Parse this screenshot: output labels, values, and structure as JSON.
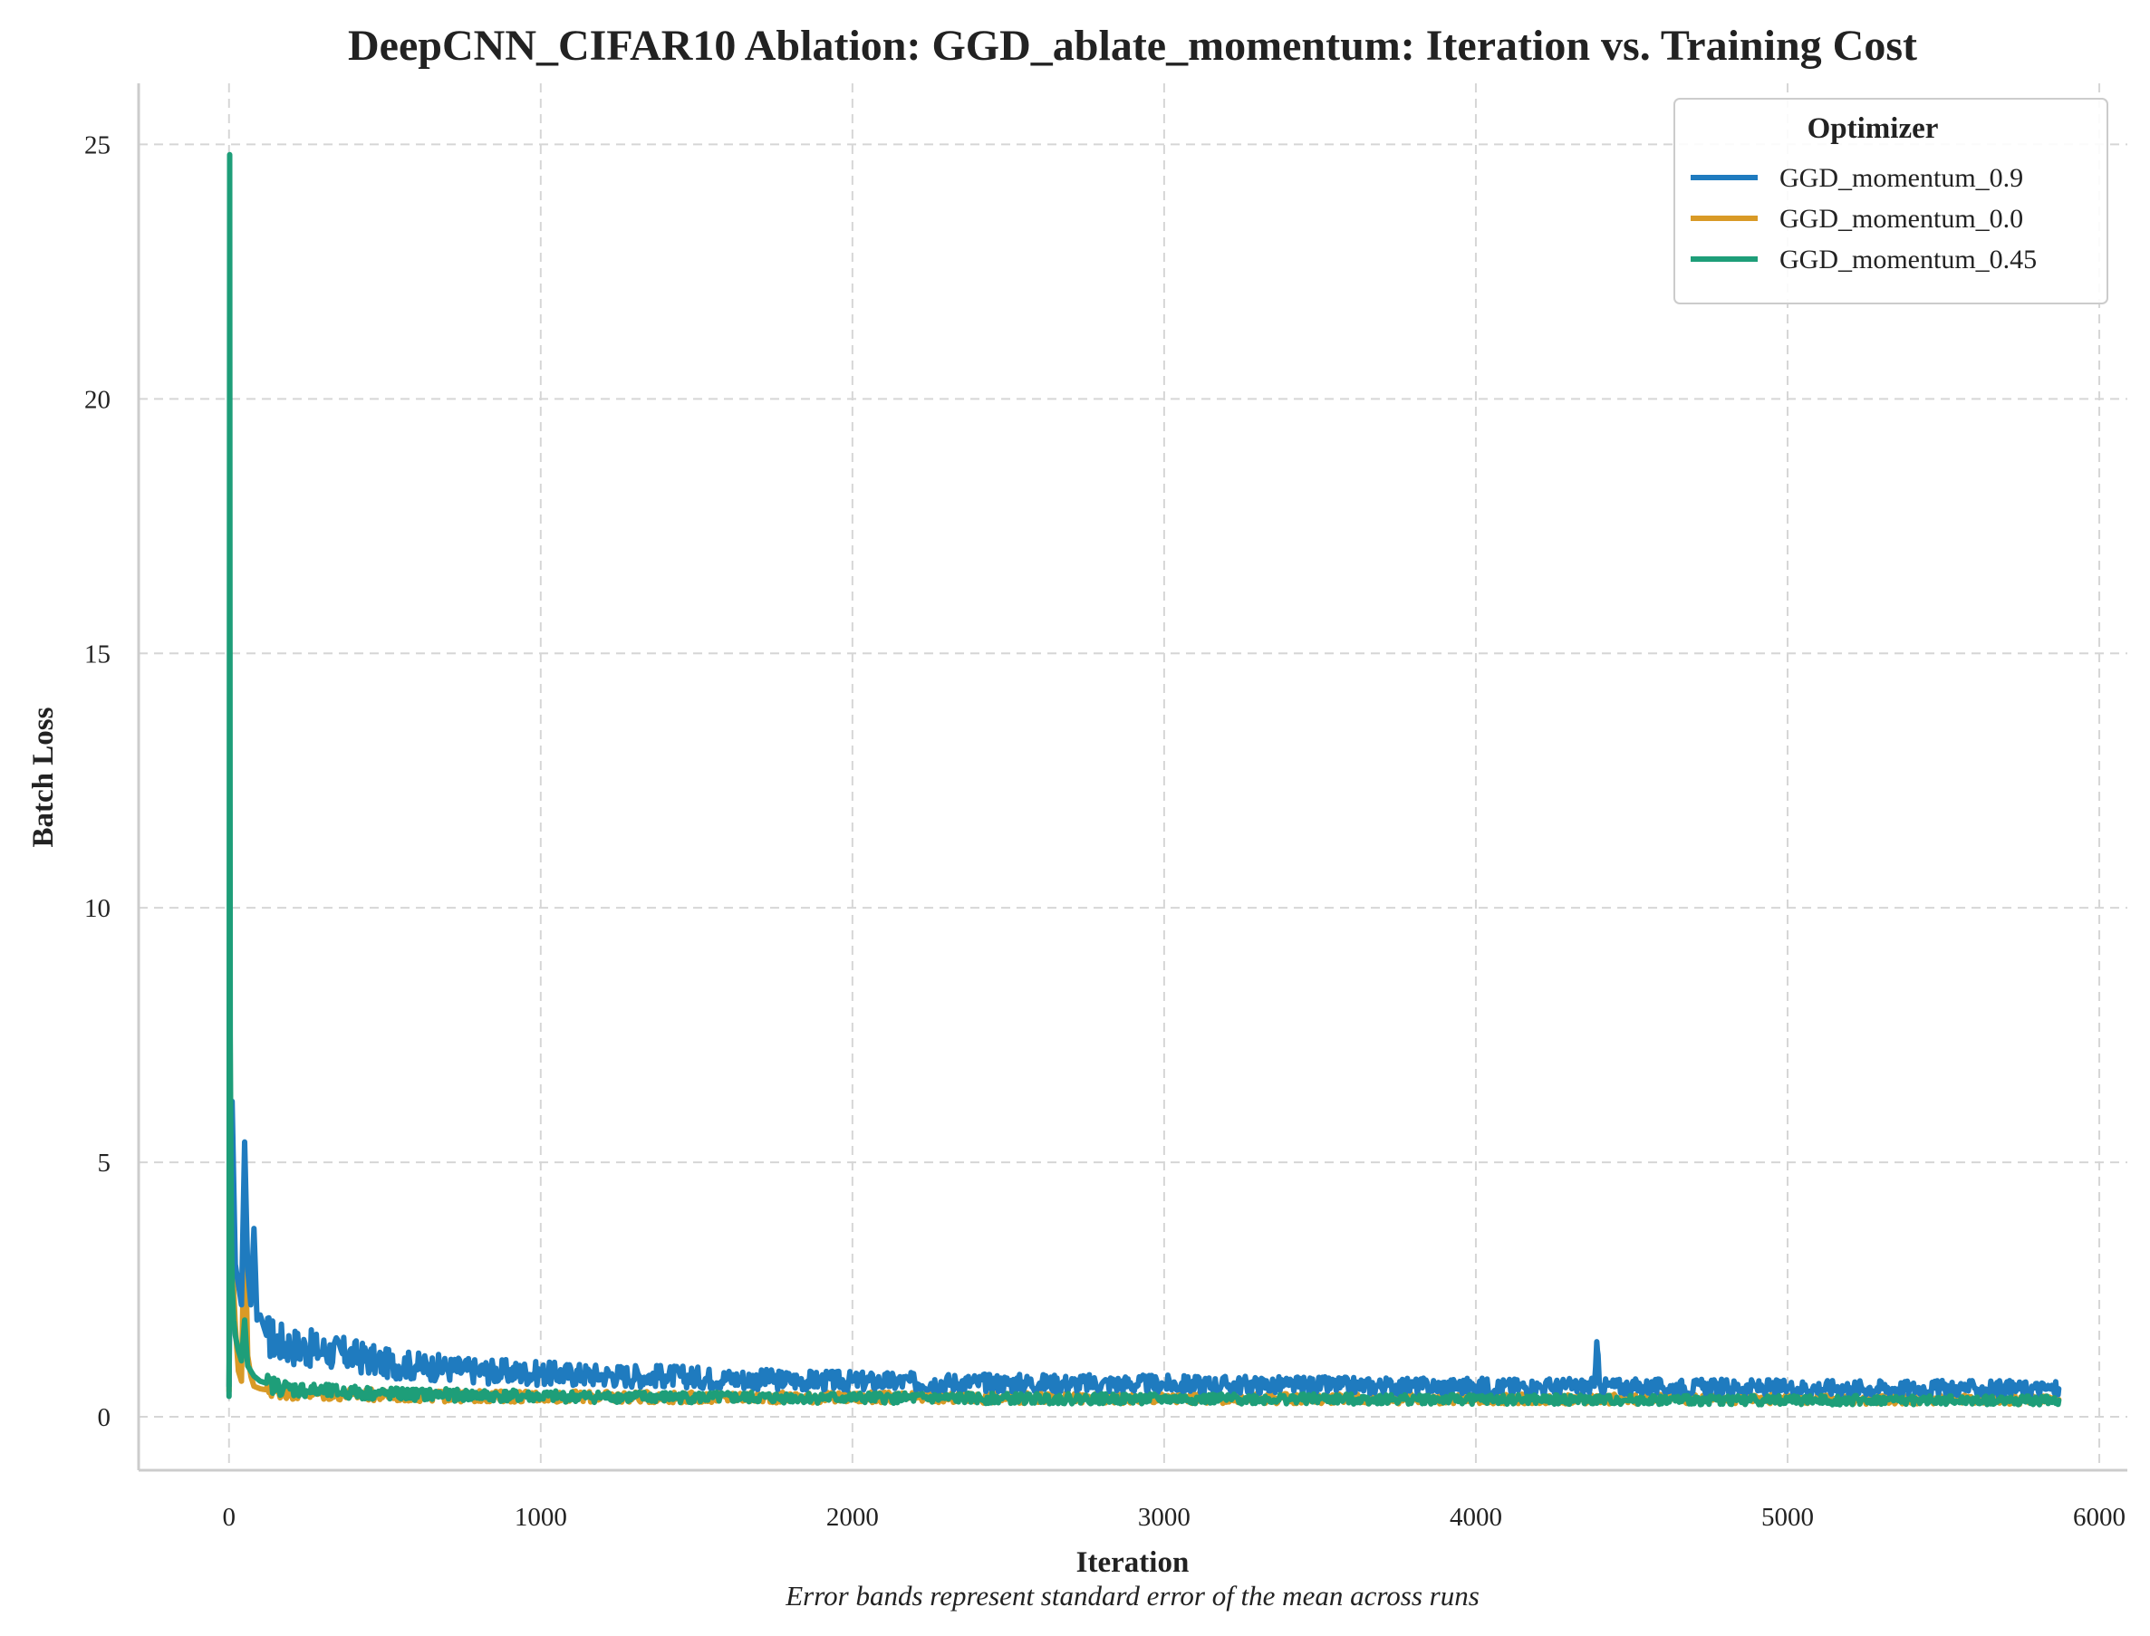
{
  "chart_data": {
    "type": "line",
    "title": "DeepCNN_CIFAR10 Ablation: GGD_ablate_momentum: Iteration vs. Training Cost",
    "xlabel": "Iteration",
    "ylabel": "Batch Loss",
    "footnote": "Error bands represent standard error of the mean across runs",
    "xlim": [
      -290,
      6090
    ],
    "ylim": [
      -1.05,
      26.2
    ],
    "xticks": [
      0,
      1000,
      2000,
      3000,
      4000,
      5000,
      6000
    ],
    "xtick_labels": [
      "0",
      "1000",
      "2000",
      "3000",
      "4000",
      "5000",
      "6000"
    ],
    "yticks": [
      0,
      5,
      10,
      15,
      20,
      25
    ],
    "ytick_labels": [
      "0",
      "5",
      "10",
      "15",
      "20",
      "25"
    ],
    "grid": true,
    "legend": {
      "title": "Optimizer",
      "position": "top-right"
    },
    "series": [
      {
        "name": "GGD_momentum_0.9",
        "color": "#1f7bbf",
        "x": [
          0,
          5,
          10,
          20,
          30,
          40,
          50,
          60,
          70,
          80,
          90,
          100,
          120,
          150,
          200,
          250,
          300,
          400,
          500,
          600,
          700,
          800,
          900,
          1000,
          1200,
          1400,
          1600,
          1800,
          2000,
          2200,
          2400,
          2600,
          2800,
          3000,
          3200,
          3400,
          3600,
          3800,
          4000,
          4200,
          4380,
          4390,
          4400,
          4600,
          4800,
          5000,
          5200,
          5400,
          5600,
          5870
        ],
        "values": [
          0.6,
          4.2,
          6.2,
          3.0,
          2.6,
          2.2,
          5.4,
          2.9,
          2.2,
          3.7,
          1.9,
          2.0,
          1.6,
          1.5,
          1.4,
          1.35,
          1.3,
          1.2,
          1.05,
          1.0,
          0.95,
          0.9,
          0.88,
          0.85,
          0.82,
          0.8,
          0.75,
          0.72,
          0.7,
          0.68,
          0.67,
          0.66,
          0.65,
          0.64,
          0.63,
          0.62,
          0.61,
          0.6,
          0.6,
          0.59,
          0.6,
          1.3,
          0.6,
          0.58,
          0.58,
          0.57,
          0.57,
          0.56,
          0.56,
          0.55
        ]
      },
      {
        "name": "GGD_momentum_0.0",
        "color": "#d99a26",
        "x": [
          0,
          5,
          10,
          20,
          30,
          40,
          50,
          60,
          70,
          80,
          100,
          150,
          200,
          300,
          400,
          500,
          700,
          1000,
          1500,
          2000,
          2500,
          3000,
          3500,
          4000,
          4500,
          5000,
          5500,
          5870
        ],
        "values": [
          0.5,
          5.0,
          3.2,
          1.8,
          0.9,
          0.7,
          4.3,
          1.2,
          0.8,
          0.6,
          0.55,
          0.5,
          0.48,
          0.45,
          0.44,
          0.42,
          0.4,
          0.4,
          0.38,
          0.38,
          0.37,
          0.36,
          0.36,
          0.35,
          0.35,
          0.35,
          0.34,
          0.34
        ]
      },
      {
        "name": "GGD_momentum_0.45",
        "color": "#1e9e79",
        "x": [
          0,
          2,
          4,
          6,
          8,
          10,
          15,
          20,
          30,
          40,
          50,
          60,
          80,
          100,
          150,
          200,
          300,
          400,
          500,
          700,
          1000,
          1500,
          2000,
          2500,
          3000,
          3500,
          4000,
          4500,
          5000,
          5500,
          5870
        ],
        "values": [
          0.4,
          24.8,
          7.5,
          5.2,
          3.5,
          2.6,
          1.9,
          1.6,
          1.3,
          1.1,
          1.9,
          1.0,
          0.8,
          0.7,
          0.6,
          0.55,
          0.5,
          0.48,
          0.45,
          0.43,
          0.4,
          0.38,
          0.37,
          0.36,
          0.35,
          0.35,
          0.34,
          0.33,
          0.33,
          0.32,
          0.32
        ]
      }
    ]
  }
}
